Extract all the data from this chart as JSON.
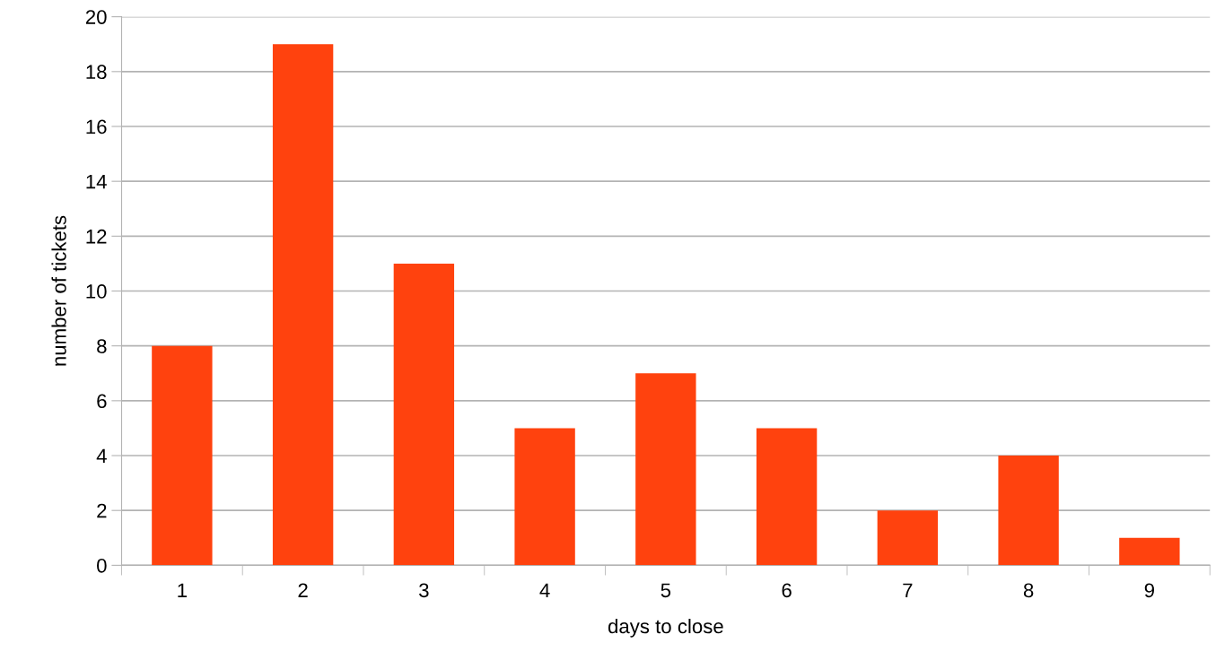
{
  "chart_data": {
    "type": "bar",
    "xlabel": "days to close",
    "ylabel": "number of tickets",
    "categories": [
      "1",
      "2",
      "3",
      "4",
      "5",
      "6",
      "7",
      "8",
      "9"
    ],
    "values": [
      8,
      19,
      11,
      5,
      7,
      5,
      2,
      4,
      1
    ],
    "color": "#ff420e",
    "ylim": [
      0,
      20
    ],
    "yticks": [
      0,
      2,
      4,
      6,
      8,
      10,
      12,
      14,
      16,
      18,
      20
    ],
    "grid": "y"
  }
}
